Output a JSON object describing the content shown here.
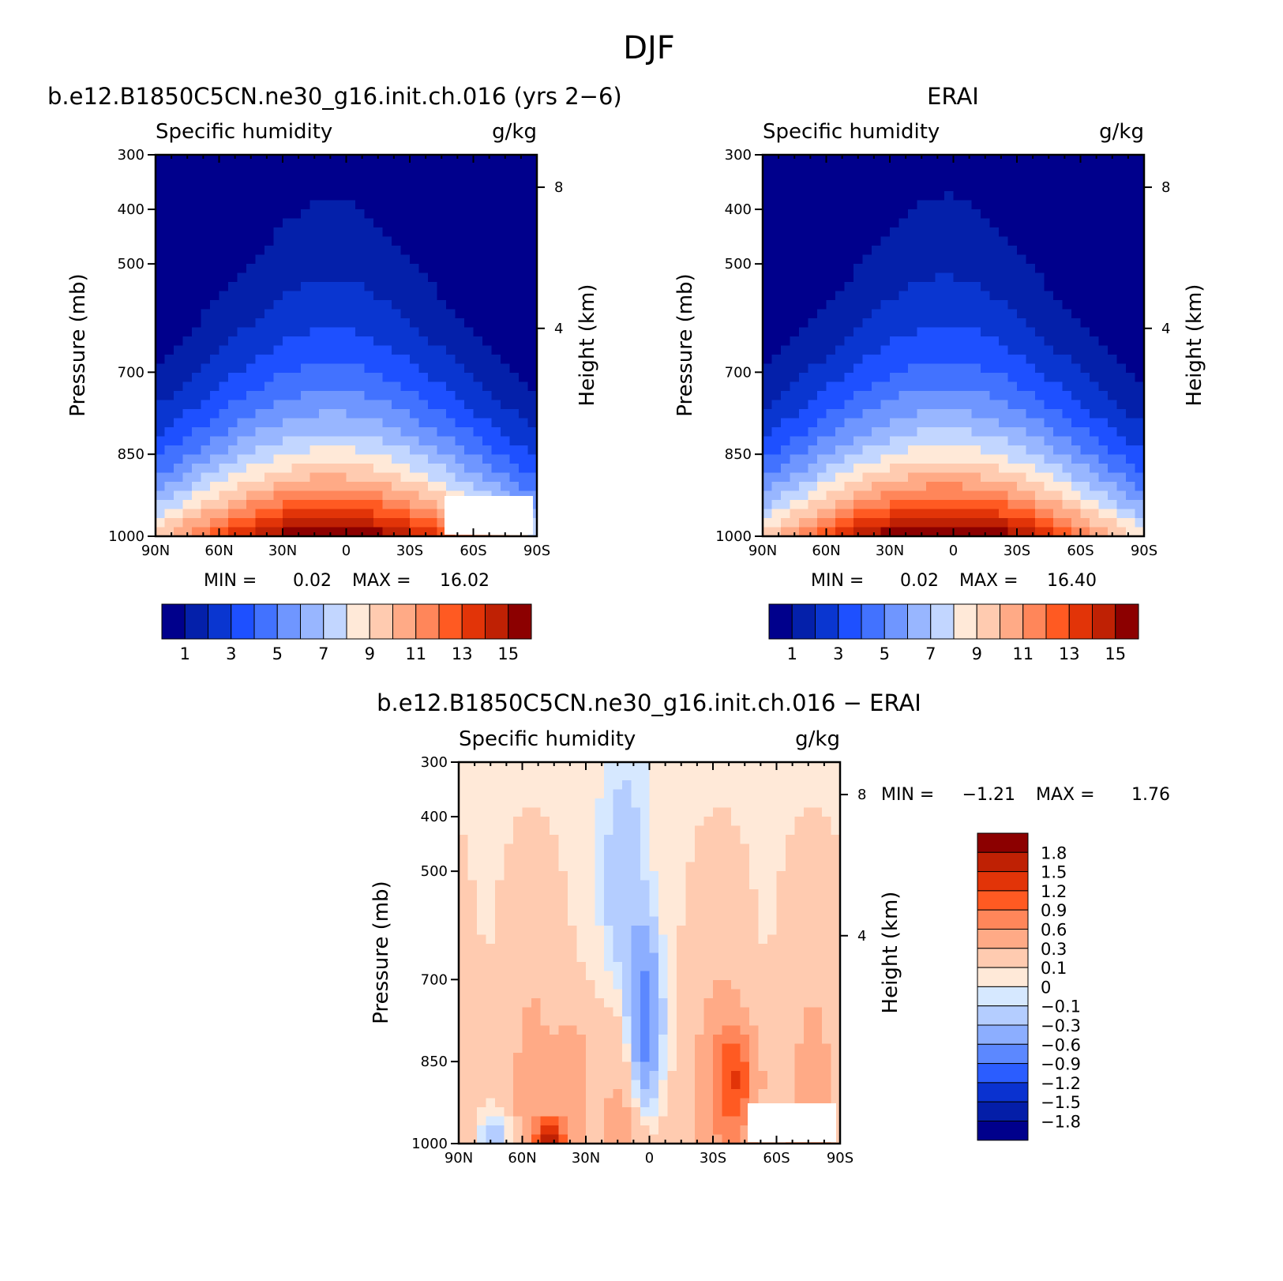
{
  "figure": {
    "title": "DJF"
  },
  "chart_data": [
    {
      "type": "heatmap",
      "title": "b.e12.B1850C5CN.ne30_g16.init.ch.016 (yrs 2−6)",
      "variable_label": "Specific humidity",
      "units": "g/kg",
      "ylabel": "Pressure (mb)",
      "ylabel_right": "Height (km)",
      "x_ticks": [
        "90N",
        "60N",
        "30N",
        "0",
        "30S",
        "60S",
        "90S"
      ],
      "y_ticks": [
        "300",
        "400",
        "500",
        "700",
        "850",
        "1000"
      ],
      "y_right_ticks": [
        "8",
        "4"
      ],
      "ylim": [
        1000,
        300
      ],
      "min_label": "MIN =",
      "min": "0.02",
      "max_label": "MAX =",
      "max": "16.02",
      "colorbar": {
        "levels": [
          1,
          2,
          3,
          4,
          5,
          6,
          7,
          8,
          9,
          10,
          11,
          12,
          13,
          14,
          15,
          16
        ],
        "labels": [
          "1",
          "3",
          "5",
          "7",
          "9",
          "11",
          "13",
          "15"
        ]
      }
    },
    {
      "type": "heatmap",
      "title": "ERAI",
      "variable_label": "Specific humidity",
      "units": "g/kg",
      "ylabel": "Pressure (mb)",
      "ylabel_right": "Height (km)",
      "x_ticks": [
        "90N",
        "60N",
        "30N",
        "0",
        "30S",
        "60S",
        "90S"
      ],
      "y_ticks": [
        "300",
        "400",
        "500",
        "700",
        "850",
        "1000"
      ],
      "y_right_ticks": [
        "8",
        "4"
      ],
      "ylim": [
        1000,
        300
      ],
      "min_label": "MIN =",
      "min": "0.02",
      "max_label": "MAX =",
      "max": "16.40",
      "colorbar": {
        "levels": [
          1,
          2,
          3,
          4,
          5,
          6,
          7,
          8,
          9,
          10,
          11,
          12,
          13,
          14,
          15,
          16
        ],
        "labels": [
          "1",
          "3",
          "5",
          "7",
          "9",
          "11",
          "13",
          "15"
        ]
      }
    },
    {
      "type": "heatmap",
      "title": "b.e12.B1850C5CN.ne30_g16.init.ch.016 − ERAI",
      "variable_label": "Specific humidity",
      "units": "g/kg",
      "ylabel": "Pressure (mb)",
      "ylabel_right": "Height (km)",
      "x_ticks": [
        "90N",
        "60N",
        "30N",
        "0",
        "30S",
        "60S",
        "90S"
      ],
      "y_ticks": [
        "300",
        "400",
        "500",
        "700",
        "850",
        "1000"
      ],
      "y_right_ticks": [
        "8",
        "4"
      ],
      "ylim": [
        1000,
        300
      ],
      "min_label": "MIN =",
      "min": "−1.21",
      "max_label": "MAX =",
      "max": "1.76",
      "colorbar": {
        "labels": [
          "1.8",
          "1.5",
          "1.2",
          "0.9",
          "0.6",
          "0.3",
          "0.1",
          "0",
          "−0.1",
          "−0.3",
          "−0.6",
          "−0.9",
          "−1.2",
          "−1.5",
          "−1.8"
        ]
      }
    }
  ],
  "palette": {
    "seq": [
      "#00008c",
      "#0420aa",
      "#0a36d0",
      "#1e50ff",
      "#4272ff",
      "#6f96ff",
      "#98b6ff",
      "#c2d6ff",
      "#ffe9d8",
      "#ffcbb0",
      "#ffaa86",
      "#ff865a",
      "#ff5a22",
      "#e23408",
      "#bf2104",
      "#8c0000"
    ],
    "div": [
      "#8c0000",
      "#bf2104",
      "#e23408",
      "#ff5a22",
      "#ff865a",
      "#ffaa86",
      "#ffcbb0",
      "#ffe9d8",
      "#d6e8ff",
      "#b4cdff",
      "#8caeff",
      "#5c88ff",
      "#2b5dff",
      "#0a32d0",
      "#041ea8",
      "#00008c"
    ]
  }
}
